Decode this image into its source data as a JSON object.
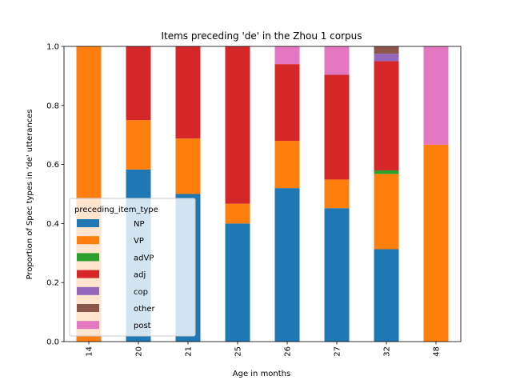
{
  "chart_data": {
    "type": "bar",
    "stacked": true,
    "title": "Items preceding 'de' in the Zhou 1 corpus",
    "xlabel": "Age in months",
    "ylabel": "Proportion of Spec types in 'de' utterances",
    "categories": [
      "14",
      "20",
      "21",
      "25",
      "26",
      "27",
      "32",
      "48"
    ],
    "ylim": [
      0,
      1.0
    ],
    "yticks": [
      "0.0",
      "0.2",
      "0.4",
      "0.6",
      "0.8",
      "1.0"
    ],
    "grid": false,
    "legend": {
      "title": "preceding_item_type",
      "placement": "lower-left"
    },
    "series": [
      {
        "name": "NP",
        "color": "#1f77b4",
        "values": [
          0.0,
          0.583,
          0.5,
          0.4,
          0.52,
          0.452,
          0.313,
          0.0
        ]
      },
      {
        "name": "VP",
        "color": "#ff7f0e",
        "values": [
          1.0,
          0.167,
          0.188,
          0.067,
          0.16,
          0.097,
          0.255,
          0.667
        ]
      },
      {
        "name": "adVP",
        "color": "#2ca02c",
        "values": [
          0.0,
          0.0,
          0.0,
          0.0,
          0.0,
          0.0,
          0.012,
          0.0
        ]
      },
      {
        "name": "adj",
        "color": "#d62728",
        "values": [
          0.0,
          0.25,
          0.312,
          0.533,
          0.26,
          0.355,
          0.37,
          0.0
        ]
      },
      {
        "name": "cop",
        "color": "#9467bd",
        "values": [
          0.0,
          0.0,
          0.0,
          0.0,
          0.0,
          0.0,
          0.025,
          0.0
        ]
      },
      {
        "name": "other",
        "color": "#8c564b",
        "values": [
          0.0,
          0.0,
          0.0,
          0.0,
          0.0,
          0.0,
          0.025,
          0.0
        ]
      },
      {
        "name": "post",
        "color": "#e377c2",
        "values": [
          0.0,
          0.0,
          0.0,
          0.0,
          0.06,
          0.096,
          0.0,
          0.333
        ]
      }
    ]
  }
}
